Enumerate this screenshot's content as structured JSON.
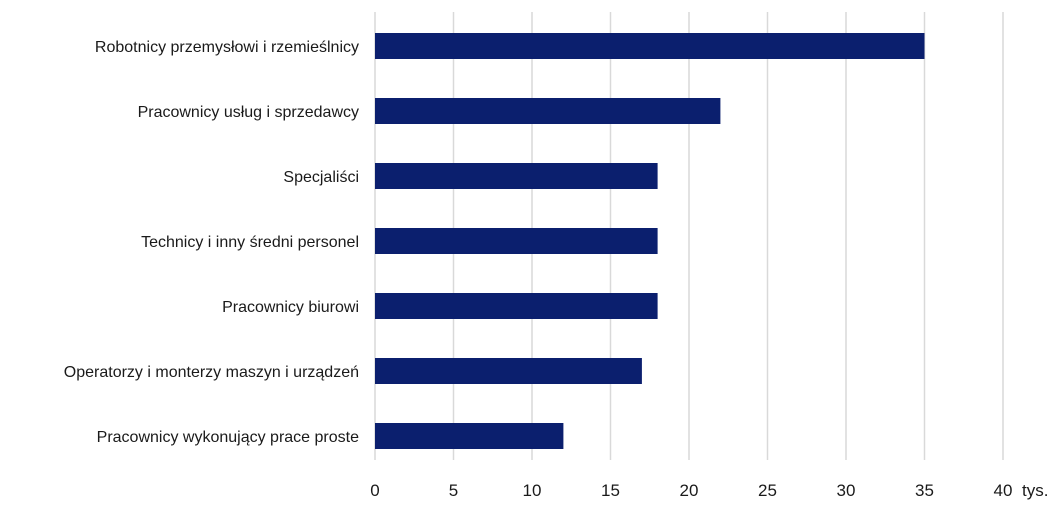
{
  "chart_data": {
    "type": "bar",
    "orientation": "horizontal",
    "categories": [
      "Robotnicy przemysłowi i rzemieślnicy",
      "Pracownicy usług i sprzedawcy",
      "Specjaliści",
      "Technicy i inny średni personel",
      "Pracownicy biurowi",
      "Operatorzy i monterzy maszyn i urządzeń",
      "Pracownicy wykonujący prace proste"
    ],
    "values": [
      35,
      22,
      18,
      18,
      18,
      17,
      12
    ],
    "xlim": [
      0,
      40
    ],
    "xticks": [
      "0",
      "5",
      "10",
      "15",
      "20",
      "25",
      "30",
      "35",
      "40"
    ],
    "unit": "tys.",
    "grid": "vertical",
    "bar_color": "#0b1f6e",
    "grid_color": "#d9d9d9"
  }
}
